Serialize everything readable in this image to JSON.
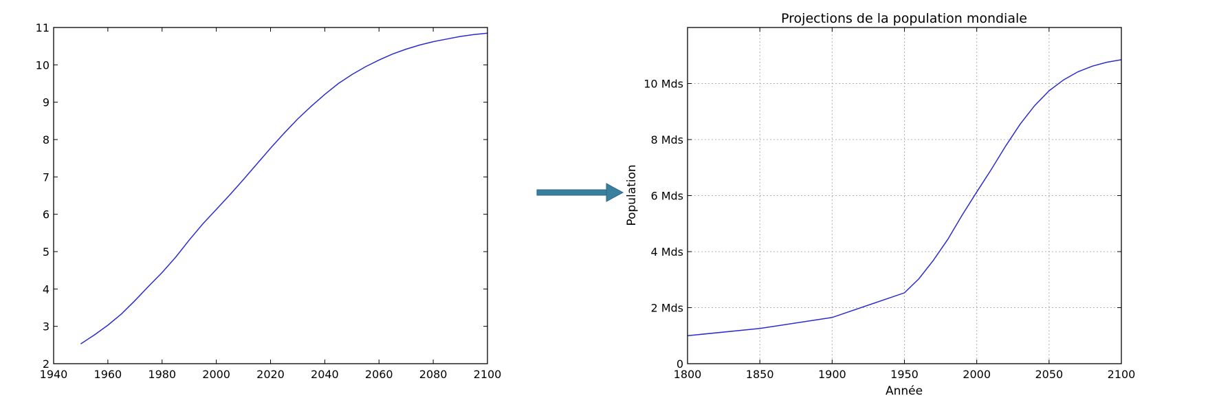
{
  "colors": {
    "line": "#2a2ad0",
    "arrow": "#3b7f9e",
    "arrow_edge": "#2a6a87",
    "frame": "#000000",
    "grid": "#b0b0b0"
  },
  "chart_data": [
    {
      "type": "line",
      "title": "",
      "xlabel": "",
      "ylabel": "",
      "xlim": [
        1940,
        2100
      ],
      "ylim": [
        2,
        11
      ],
      "grid": false,
      "x_ticks": [
        1940,
        1960,
        1980,
        2000,
        2020,
        2040,
        2060,
        2080,
        2100
      ],
      "y_ticks": [
        2,
        3,
        4,
        5,
        6,
        7,
        8,
        9,
        10,
        11
      ],
      "x_tick_labels": [
        "1940",
        "1960",
        "1980",
        "2000",
        "2020",
        "2040",
        "2060",
        "2080",
        "2100"
      ],
      "y_tick_labels": [
        "2",
        "3",
        "4",
        "5",
        "6",
        "7",
        "8",
        "9",
        "10",
        "11"
      ],
      "x": [
        1950,
        1955,
        1960,
        1965,
        1970,
        1975,
        1980,
        1985,
        1990,
        1995,
        2000,
        2005,
        2010,
        2015,
        2020,
        2025,
        2030,
        2035,
        2040,
        2045,
        2050,
        2055,
        2060,
        2065,
        2070,
        2075,
        2080,
        2085,
        2090,
        2095,
        2100
      ],
      "y": [
        2.53,
        2.77,
        3.03,
        3.33,
        3.69,
        4.07,
        4.44,
        4.85,
        5.31,
        5.74,
        6.13,
        6.52,
        6.93,
        7.35,
        7.77,
        8.17,
        8.55,
        8.89,
        9.21,
        9.5,
        9.74,
        9.95,
        10.13,
        10.29,
        10.42,
        10.53,
        10.62,
        10.69,
        10.76,
        10.81,
        10.85
      ]
    },
    {
      "type": "line",
      "title": "Projections de la population mondiale",
      "xlabel": "Année",
      "ylabel": "Population",
      "xlim": [
        1800,
        2100
      ],
      "ylim": [
        0,
        12
      ],
      "grid": true,
      "x_ticks": [
        1800,
        1850,
        1900,
        1950,
        2000,
        2050,
        2100
      ],
      "y_ticks": [
        0,
        2,
        4,
        6,
        8,
        10
      ],
      "x_tick_labels": [
        "1800",
        "1850",
        "1900",
        "1950",
        "2000",
        "2050",
        "2100"
      ],
      "y_tick_labels": [
        "0",
        "2 Mds",
        "4 Mds",
        "6 Mds",
        "8 Mds",
        "10 Mds"
      ],
      "x": [
        1800,
        1850,
        1900,
        1950,
        1960,
        1970,
        1980,
        1990,
        2000,
        2010,
        2020,
        2030,
        2040,
        2050,
        2060,
        2070,
        2080,
        2090,
        2100
      ],
      "y": [
        1.0,
        1.26,
        1.65,
        2.53,
        3.03,
        3.69,
        4.44,
        5.31,
        6.13,
        6.93,
        7.77,
        8.55,
        9.21,
        9.74,
        10.13,
        10.42,
        10.62,
        10.76,
        10.85
      ]
    }
  ]
}
